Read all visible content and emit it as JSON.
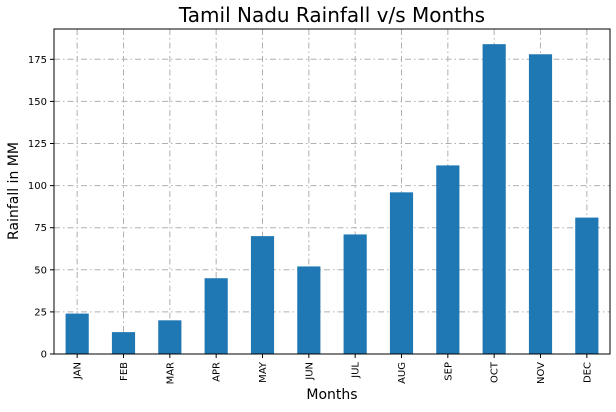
{
  "chart_data": {
    "type": "bar",
    "title": "Tamil Nadu Rainfall v/s Months",
    "xlabel": "Months",
    "ylabel": "Rainfall in MM",
    "categories": [
      "JAN",
      "FEB",
      "MAR",
      "APR",
      "MAY",
      "JUN",
      "JUL",
      "AUG",
      "SEP",
      "OCT",
      "NOV",
      "DEC"
    ],
    "values": [
      24,
      13,
      20,
      45,
      70,
      52,
      71,
      96,
      112,
      184,
      178,
      81
    ],
    "ylim": [
      0,
      193
    ],
    "yticks": [
      0,
      25,
      50,
      75,
      100,
      125,
      150,
      175
    ],
    "grid": true,
    "legend": "none",
    "colors": {
      "bar": "#1f77b4",
      "grid": "#b0b0b0",
      "axis": "#000000"
    }
  }
}
